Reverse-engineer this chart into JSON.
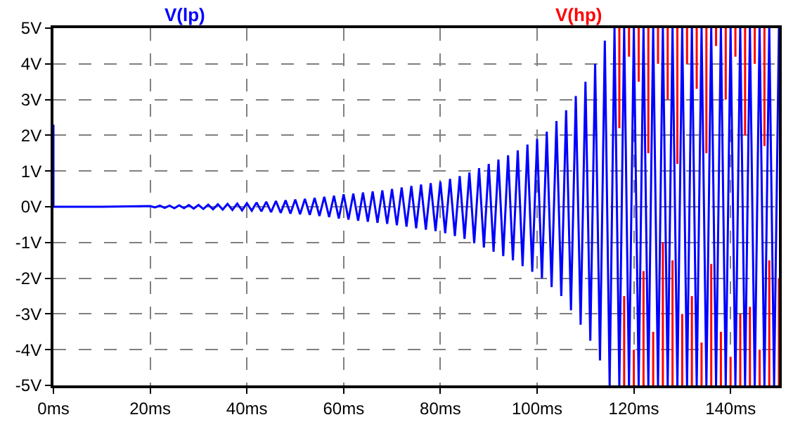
{
  "chart_data": {
    "type": "line",
    "xlim": [
      0,
      150
    ],
    "ylim": [
      -5,
      5
    ],
    "xticks": [
      {
        "value": 0,
        "label": "0ms"
      },
      {
        "value": 20,
        "label": "20ms"
      },
      {
        "value": 40,
        "label": "40ms"
      },
      {
        "value": 60,
        "label": "60ms"
      },
      {
        "value": 80,
        "label": "80ms"
      },
      {
        "value": 100,
        "label": "100ms"
      },
      {
        "value": 120,
        "label": "120ms"
      },
      {
        "value": 140,
        "label": "140ms"
      }
    ],
    "yticks": [
      {
        "value": -5,
        "label": "-5V"
      },
      {
        "value": -4,
        "label": "-4V"
      },
      {
        "value": -3,
        "label": "-3V"
      },
      {
        "value": -2,
        "label": "-2V"
      },
      {
        "value": -1,
        "label": "-1V"
      },
      {
        "value": 0,
        "label": "0V"
      },
      {
        "value": 1,
        "label": "1V"
      },
      {
        "value": 2,
        "label": "2V"
      },
      {
        "value": 3,
        "label": "3V"
      },
      {
        "value": 4,
        "label": "4V"
      },
      {
        "value": 5,
        "label": "5V"
      }
    ],
    "grid": true,
    "line_style": "solid",
    "marker": "none",
    "series": [
      {
        "name": "V(lp)",
        "color": "#0000ff",
        "x": [
          0,
          0,
          10,
          20,
          21,
          22,
          23,
          24,
          25,
          26,
          27,
          28,
          29,
          30,
          31,
          32,
          33,
          34,
          35,
          36,
          37,
          38,
          39,
          40,
          41,
          42,
          43,
          44,
          45,
          46,
          47,
          48,
          49,
          50,
          51,
          52,
          53,
          54,
          55,
          56,
          57,
          58,
          59,
          60,
          61,
          62,
          63,
          64,
          65,
          66,
          67,
          68,
          69,
          70,
          71,
          72,
          73,
          74,
          75,
          76,
          77,
          78,
          79,
          80,
          81,
          82,
          83,
          84,
          85,
          86,
          87,
          88,
          89,
          90,
          91,
          92,
          93,
          94,
          95,
          96,
          97,
          98,
          99,
          100,
          101,
          102,
          103,
          104,
          105,
          106,
          107,
          108,
          109,
          110,
          111,
          112,
          113,
          114,
          115,
          116,
          117,
          118,
          119,
          120,
          121,
          122,
          123,
          124,
          125,
          126,
          127,
          128,
          129,
          130,
          131,
          132,
          133,
          134,
          135,
          136,
          137,
          138,
          139,
          140,
          141,
          142,
          143,
          144,
          145,
          146,
          147,
          148,
          149,
          150
        ],
        "values": [
          2.3,
          0,
          0,
          0.02,
          -0.02,
          0.03,
          -0.03,
          0.03,
          -0.04,
          0.04,
          -0.04,
          0.05,
          -0.05,
          0.05,
          -0.06,
          0.06,
          -0.07,
          0.07,
          -0.08,
          0.08,
          -0.09,
          0.09,
          -0.1,
          0.1,
          -0.11,
          0.12,
          -0.13,
          0.14,
          -0.15,
          0.16,
          -0.17,
          0.18,
          -0.19,
          0.2,
          -0.21,
          0.22,
          -0.23,
          0.25,
          -0.26,
          0.28,
          -0.29,
          0.31,
          -0.33,
          0.35,
          -0.36,
          0.37,
          -0.39,
          0.4,
          -0.42,
          0.43,
          -0.45,
          0.46,
          -0.48,
          0.5,
          -0.52,
          0.54,
          -0.56,
          0.58,
          -0.6,
          0.62,
          -0.64,
          0.66,
          -0.68,
          0.7,
          -0.74,
          0.78,
          -0.82,
          0.86,
          -0.9,
          0.96,
          -1.02,
          1.08,
          -1.14,
          1.2,
          -1.26,
          1.32,
          -1.38,
          1.44,
          -1.5,
          1.58,
          -1.66,
          1.74,
          -1.82,
          1.9,
          -2,
          2.1,
          -2.25,
          2.4,
          -2.5,
          2.7,
          -2.9,
          3.1,
          -3.3,
          3.5,
          -3.75,
          4,
          -4.3,
          4.65,
          -5,
          5,
          -5,
          5,
          -5,
          5,
          -5,
          5,
          -5,
          5,
          -5,
          5,
          -5,
          5,
          -5,
          5,
          -5,
          5,
          -5,
          5,
          -5,
          5,
          -5,
          5,
          -5,
          5,
          -5,
          5,
          -5,
          5,
          -5,
          5,
          -5,
          5,
          -5,
          5
        ]
      },
      {
        "name": "V(hp)",
        "color": "#ff0000",
        "x": [
          117,
          117,
          null,
          119,
          119,
          null,
          121,
          121,
          null,
          123,
          123,
          null,
          125,
          125,
          null,
          127,
          127,
          null,
          129,
          129,
          null,
          131,
          131,
          null,
          133,
          133,
          null,
          135,
          135,
          null,
          137,
          137,
          null,
          139,
          139,
          null,
          141,
          141,
          null,
          143,
          143,
          null,
          145,
          145,
          null,
          147,
          147,
          null,
          118,
          118,
          null,
          120,
          120,
          null,
          122,
          122,
          null,
          124,
          124,
          null,
          126,
          126,
          null,
          128,
          128,
          null,
          130,
          130,
          null,
          132,
          132,
          null,
          134,
          134,
          null,
          136,
          136,
          null,
          138,
          138,
          null,
          140,
          140,
          null,
          142,
          142,
          null,
          144,
          144,
          null,
          146,
          146,
          null,
          148,
          148,
          null,
          150,
          150
        ],
        "values": [
          5,
          2.2,
          null,
          5,
          4.2,
          null,
          5,
          3.5,
          null,
          5,
          1.5,
          null,
          5,
          4.0,
          null,
          5,
          3.0,
          null,
          5,
          1.2,
          null,
          5,
          4.0,
          null,
          5,
          3.3,
          null,
          5,
          1.5,
          null,
          5,
          4.5,
          null,
          5,
          3.0,
          null,
          5,
          4.2,
          null,
          5,
          2.0,
          null,
          5,
          4.0,
          null,
          5,
          1.7,
          null,
          -5,
          -2.5,
          null,
          -5,
          -4.0,
          null,
          -5,
          -1.8,
          null,
          -5,
          -3.5,
          null,
          -5,
          -1.0,
          null,
          -5,
          -1.5,
          null,
          -5,
          -3.0,
          null,
          -5,
          -2.5,
          null,
          -5,
          -3.8,
          null,
          -5,
          -1.6,
          null,
          -5,
          -3.5,
          null,
          -5,
          -4.2,
          null,
          -5,
          -3.0,
          null,
          -5,
          -2.8,
          null,
          -5,
          -4.0,
          null,
          -5,
          -1.5,
          null,
          -5,
          -2.0
        ]
      }
    ]
  }
}
